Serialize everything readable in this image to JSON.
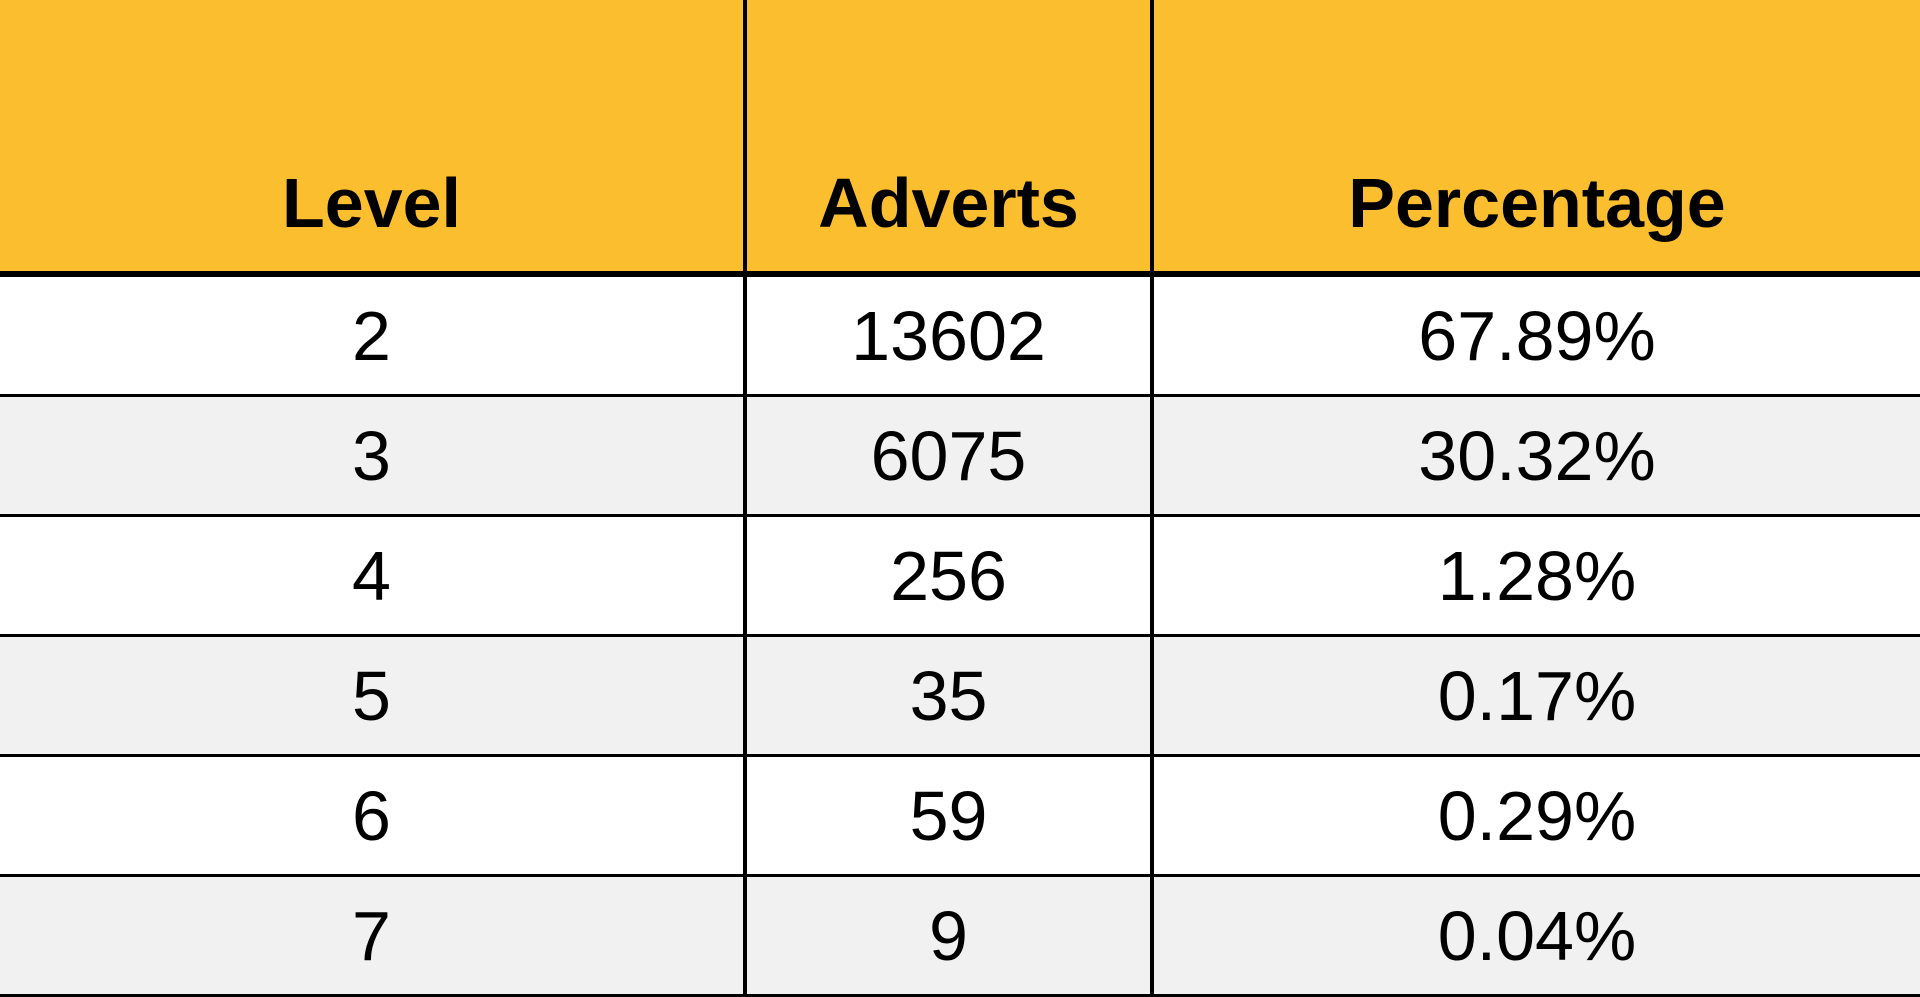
{
  "table": {
    "headers": [
      "Level",
      "Adverts",
      "Percentage"
    ],
    "rows": [
      [
        "2",
        "13602",
        "67.89%"
      ],
      [
        "3",
        "6075",
        "30.32%"
      ],
      [
        "4",
        "256",
        "1.28%"
      ],
      [
        "5",
        "35",
        "0.17%"
      ],
      [
        "6",
        "59",
        "0.29%"
      ],
      [
        "7",
        "9",
        "0.04%"
      ]
    ],
    "header_color": "#fbbe2e",
    "alt_row_color": "#f1f1f1"
  }
}
